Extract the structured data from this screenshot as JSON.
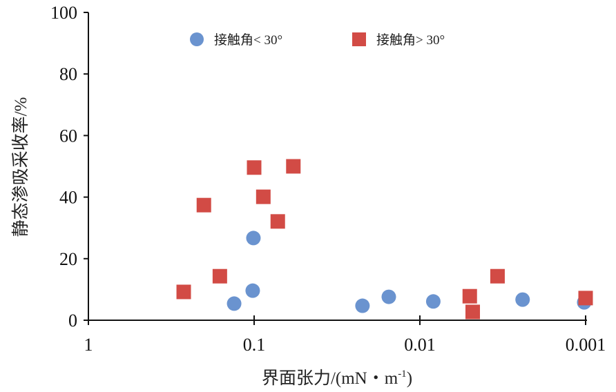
{
  "chart_data": {
    "type": "scatter",
    "title": "",
    "xlabel": "界面张力/(mN・m",
    "xlabel_sup": "-1",
    "xlabel_end": ")",
    "ylabel": "静态渗吸采收率/%",
    "x_scale": "log",
    "x_reversed": true,
    "xlim": [
      1,
      0.001
    ],
    "ylim": [
      0,
      100
    ],
    "x_ticks": [
      "1",
      "0.1",
      "0.01",
      "0.001"
    ],
    "x_tick_values": [
      1,
      0.1,
      0.01,
      0.001
    ],
    "y_ticks": [
      "0",
      "20",
      "40",
      "60",
      "80",
      "100"
    ],
    "y_tick_values": [
      0,
      20,
      40,
      60,
      80,
      100
    ],
    "grid": false,
    "legend_placement": "top",
    "series": [
      {
        "name": "接触角< 30°",
        "marker": "circle",
        "color": "#6A93CF",
        "points": [
          {
            "x": 0.132,
            "y": 5.4
          },
          {
            "x": 0.101,
            "y": 26.7
          },
          {
            "x": 0.102,
            "y": 9.6
          },
          {
            "x": 0.0222,
            "y": 4.7
          },
          {
            "x": 0.0154,
            "y": 7.6
          },
          {
            "x": 0.0083,
            "y": 6.1
          },
          {
            "x": 0.0024,
            "y": 6.7
          },
          {
            "x": 0.00102,
            "y": 5.8
          }
        ]
      },
      {
        "name": "接触角> 30°",
        "marker": "square",
        "color": "#D24B45",
        "points": [
          {
            "x": 0.266,
            "y": 9.2
          },
          {
            "x": 0.201,
            "y": 37.4
          },
          {
            "x": 0.161,
            "y": 14.3
          },
          {
            "x": 0.1,
            "y": 49.6
          },
          {
            "x": 0.088,
            "y": 40.1
          },
          {
            "x": 0.072,
            "y": 32.1
          },
          {
            "x": 0.058,
            "y": 50.0
          },
          {
            "x": 0.005,
            "y": 7.8
          },
          {
            "x": 0.0048,
            "y": 2.7
          },
          {
            "x": 0.0034,
            "y": 14.3
          },
          {
            "x": 0.001,
            "y": 7.2
          }
        ]
      }
    ]
  }
}
